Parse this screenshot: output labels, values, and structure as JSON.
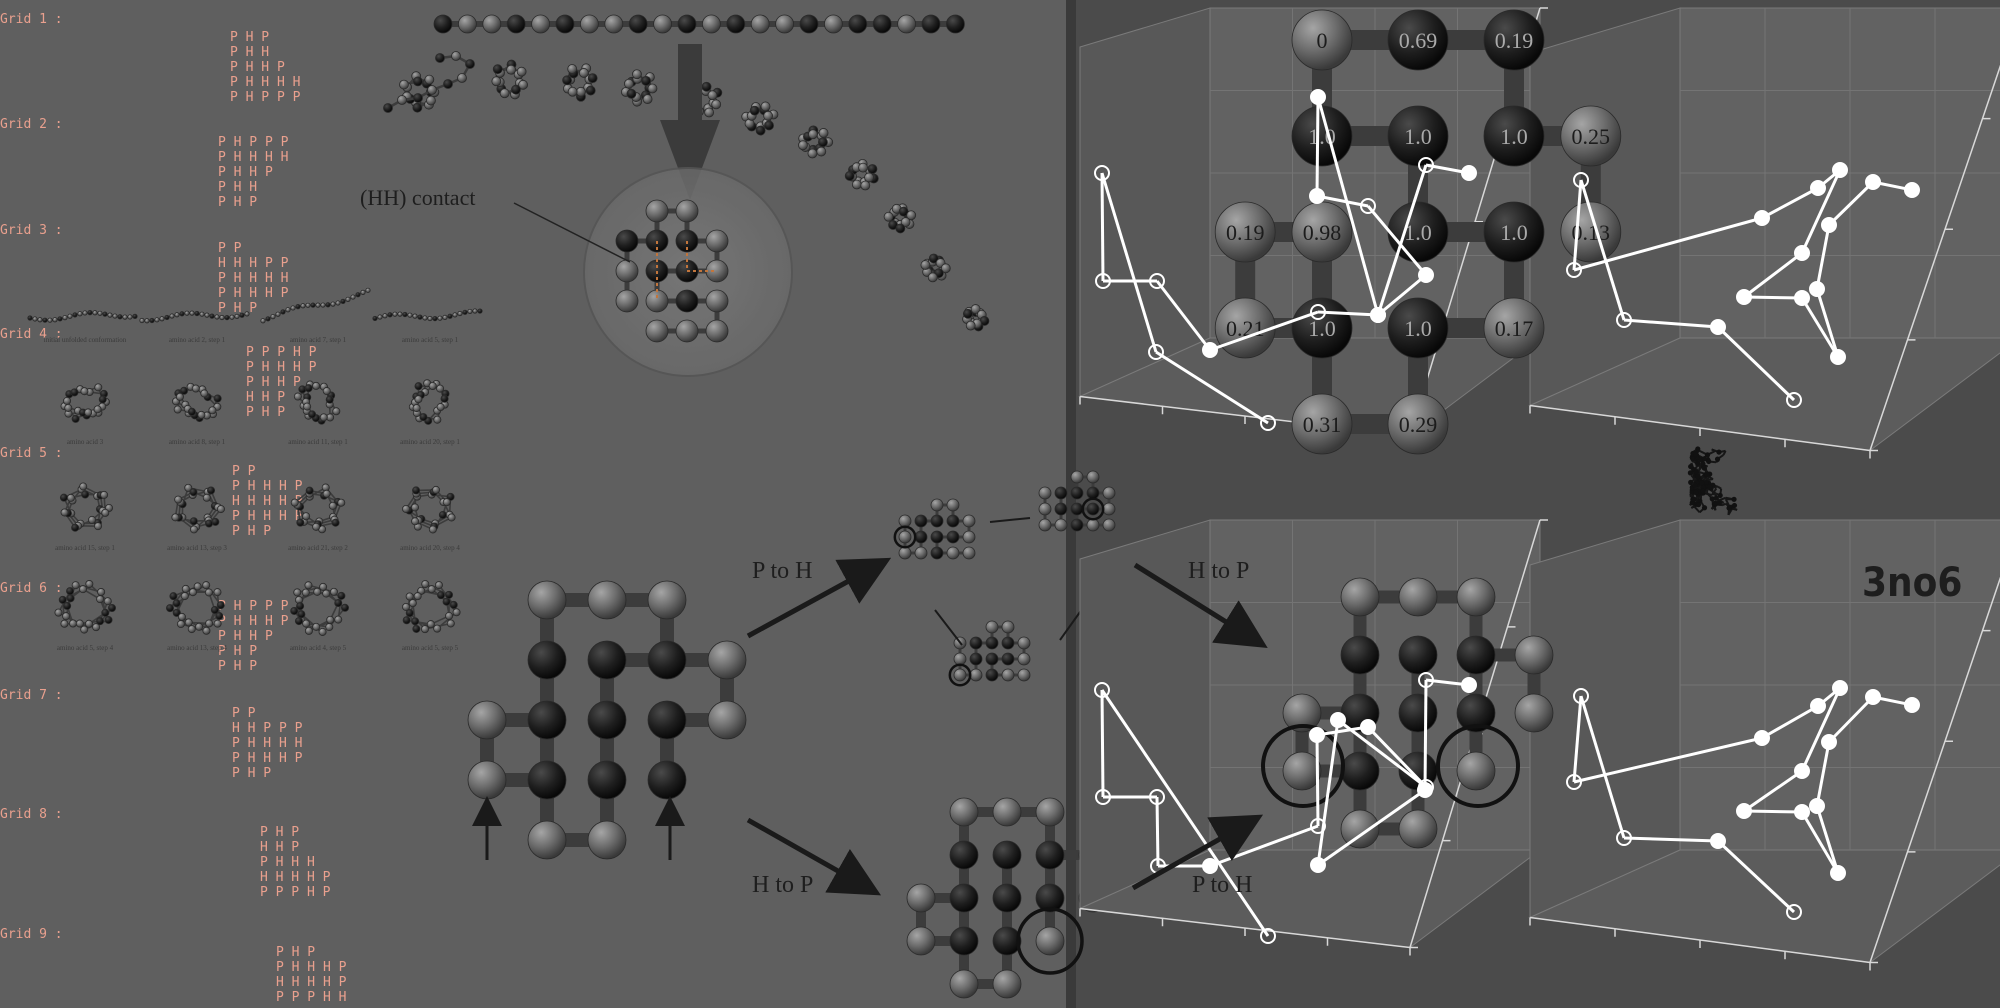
{
  "grids": [
    {
      "label": "Grid 1 :",
      "rows": [
        "P H P",
        "P H H",
        "P H H P",
        "P H H H H",
        "P H P P P"
      ]
    },
    {
      "label": "Grid 2 :",
      "rows": [
        "P H P P P",
        "P H H H H",
        "P H H P",
        "P H H",
        "P H P"
      ]
    },
    {
      "label": "Grid 3 :",
      "rows": [
        "P P",
        "H H H P P",
        "P H H H H",
        "P H H H P",
        "P H P"
      ]
    },
    {
      "label": "Grid 4 :",
      "rows": [
        "P P P H P",
        "P H H H P",
        "P H H P",
        "H H P",
        "P H P"
      ]
    },
    {
      "label": "Grid 5 :",
      "rows": [
        "P P",
        "P H H H P",
        "H H H H P",
        "P H H H P",
        "P H P"
      ]
    },
    {
      "label": "Grid 6 :",
      "rows": [
        "P H P P P",
        "P H H H P",
        "P H H P",
        "P H P",
        "P H P"
      ]
    },
    {
      "label": "Grid 7 :",
      "rows": [
        "P P",
        "H H P P P",
        "P H H H H",
        "P H H H P",
        "P H P"
      ]
    },
    {
      "label": "Grid 8 :",
      "rows": [
        "P H P",
        "H H P",
        "P H H H",
        "H H H H P",
        "P P P H P"
      ]
    },
    {
      "label": "Grid 9 :",
      "rows": [
        "P H P",
        "P H H H P",
        "H H H H P",
        "P P P H H"
      ]
    }
  ],
  "captions": {
    "row1": [
      "initial unfolded conformation",
      "amino acid 2, step 1",
      "amino acid 7, step 1",
      "amino acid 5, step 1"
    ],
    "row2": [
      "amino acid 3",
      "amino acid 8, step 1",
      "amino acid 11, step 1",
      "amino acid 20, step 1"
    ],
    "row3": [
      "amino acid 15, step 1",
      "amino acid 13, step 3",
      "amino acid 21, step 2",
      "amino acid 20, step 4"
    ],
    "row4": [
      "amino acid 5, step 4",
      "amino acid 13, step 4",
      "amino acid 4, step 5",
      "amino acid 5, step 5"
    ]
  },
  "labels": {
    "hh_contact": "(HH) contact",
    "p_to_h_1": "P to H",
    "h_to_p_1": "H to P",
    "h_to_p_2": "H to P",
    "p_to_h_2": "P to H",
    "pdb_id": "3no6"
  },
  "probabilities": {
    "row1": [
      "0",
      "0.69",
      "0.19"
    ],
    "row2": [
      "1.0",
      "1.0",
      "1.0",
      "0.25"
    ],
    "row3": [
      "0.19",
      "0.98",
      "1.0",
      "1.0",
      "0.13"
    ],
    "row4": [
      "0.21",
      "1.0",
      "1.0",
      "0.17"
    ],
    "row5": [
      "0.31",
      "0.29"
    ]
  },
  "colors": {
    "background": "#5e5e5e",
    "right_panel": "#4a4a4a",
    "grid_text": "#e9a08e",
    "h_bead": "#1c1c1c",
    "p_bead": "#6e6e6e",
    "white_trace": "#ffffff"
  }
}
